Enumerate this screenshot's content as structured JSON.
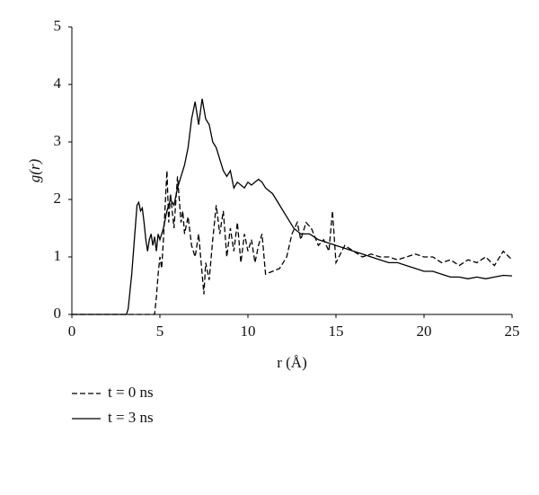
{
  "chart_data": {
    "type": "line",
    "xlabel": "r (Å)",
    "ylabel": "g(r)",
    "xlim": [
      0,
      25
    ],
    "xticks": [
      0,
      5,
      10,
      15,
      20,
      25
    ],
    "ylim": [
      0,
      5
    ],
    "yticks": [
      0,
      1,
      2,
      3,
      4,
      5
    ],
    "grid": false,
    "legend_position": "below",
    "series": [
      {
        "name": "t = 0 ns",
        "color": "#000000",
        "line_style": "dashed",
        "x": [
          0,
          4.7,
          4.8,
          4.9,
          5.0,
          5.1,
          5.2,
          5.4,
          5.5,
          5.6,
          5.8,
          6.0,
          6.2,
          6.3,
          6.4,
          6.6,
          6.8,
          7.0,
          7.2,
          7.4,
          7.5,
          7.6,
          7.8,
          8.0,
          8.2,
          8.4,
          8.6,
          8.8,
          9.0,
          9.2,
          9.4,
          9.6,
          9.8,
          10,
          10.2,
          10.4,
          10.6,
          10.8,
          11.0,
          11.4,
          11.8,
          12.2,
          12.5,
          12.8,
          13.0,
          13.3,
          13.6,
          14,
          14.3,
          14.6,
          14.8,
          15,
          15.5,
          16,
          16.5,
          17,
          17.5,
          18,
          18.5,
          19,
          19.5,
          20,
          20.5,
          21,
          21.5,
          22,
          22.5,
          23,
          23.5,
          24,
          24.5,
          25
        ],
        "values": [
          0,
          0,
          0.3,
          0.7,
          1.0,
          0.8,
          1.3,
          2.5,
          1.6,
          2.1,
          1.5,
          2.4,
          1.6,
          1.8,
          1.4,
          1.7,
          1.2,
          1.0,
          1.4,
          0.7,
          0.35,
          0.9,
          0.6,
          1.3,
          1.9,
          1.4,
          1.8,
          1.0,
          1.5,
          1.1,
          1.6,
          0.9,
          1.4,
          1.1,
          1.3,
          0.9,
          1.2,
          1.4,
          0.7,
          0.75,
          0.8,
          1.0,
          1.4,
          1.6,
          1.3,
          1.6,
          1.5,
          1.2,
          1.3,
          1.1,
          1.8,
          0.9,
          1.2,
          1.1,
          1.0,
          1.05,
          1.0,
          1.0,
          0.95,
          1.0,
          1.05,
          1.0,
          1.0,
          0.9,
          0.95,
          0.85,
          0.95,
          0.9,
          1.0,
          0.85,
          1.1,
          0.95
        ]
      },
      {
        "name": "t = 3 ns",
        "color": "#000000",
        "line_style": "solid",
        "x": [
          0,
          3.1,
          3.2,
          3.4,
          3.5,
          3.6,
          3.7,
          3.8,
          3.9,
          4.0,
          4.1,
          4.2,
          4.3,
          4.4,
          4.5,
          4.6,
          4.7,
          4.8,
          4.9,
          5.0,
          5.2,
          5.4,
          5.6,
          5.8,
          6.0,
          6.2,
          6.4,
          6.6,
          6.8,
          7.0,
          7.2,
          7.4,
          7.6,
          7.8,
          8.0,
          8.2,
          8.4,
          8.6,
          8.8,
          9.0,
          9.2,
          9.4,
          9.6,
          9.8,
          10.0,
          10.2,
          10.4,
          10.6,
          10.8,
          11.0,
          11.4,
          11.8,
          12.2,
          12.6,
          13.0,
          13.5,
          14,
          14.5,
          15,
          15.5,
          16,
          16.5,
          17,
          17.5,
          18,
          18.5,
          19,
          19.5,
          20,
          20.5,
          21,
          21.5,
          22,
          22.5,
          23,
          23.5,
          24,
          24.5,
          25
        ],
        "values": [
          0,
          0,
          0.1,
          0.7,
          1.1,
          1.5,
          1.9,
          1.95,
          1.8,
          1.85,
          1.6,
          1.3,
          1.1,
          1.3,
          1.4,
          1.2,
          1.35,
          1.1,
          1.4,
          1.3,
          1.5,
          1.8,
          2.0,
          1.9,
          2.2,
          2.4,
          2.6,
          2.9,
          3.4,
          3.7,
          3.3,
          3.75,
          3.4,
          3.3,
          3.0,
          2.9,
          2.7,
          2.5,
          2.4,
          2.5,
          2.2,
          2.3,
          2.25,
          2.2,
          2.3,
          2.25,
          2.3,
          2.35,
          2.3,
          2.2,
          2.1,
          1.9,
          1.7,
          1.5,
          1.4,
          1.4,
          1.3,
          1.25,
          1.2,
          1.15,
          1.1,
          1.05,
          1.0,
          0.95,
          0.9,
          0.9,
          0.85,
          0.8,
          0.75,
          0.75,
          0.7,
          0.65,
          0.65,
          0.62,
          0.65,
          0.62,
          0.65,
          0.68,
          0.67
        ]
      }
    ]
  }
}
